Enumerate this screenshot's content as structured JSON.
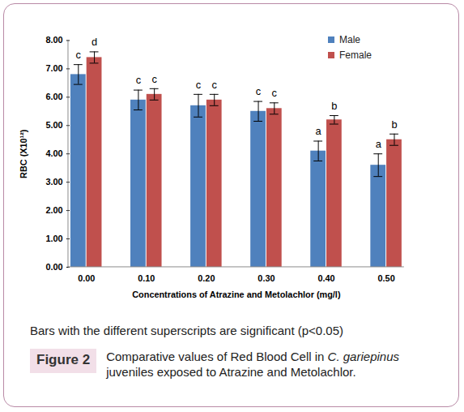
{
  "chart_data": {
    "type": "bar",
    "categories": [
      "0.00",
      "0.10",
      "0.20",
      "0.30",
      "0.40",
      "0.50"
    ],
    "series": [
      {
        "name": "Male",
        "color": "#4f81bd",
        "values": [
          6.8,
          5.9,
          5.7,
          5.5,
          4.1,
          3.6
        ],
        "errors": [
          0.35,
          0.35,
          0.4,
          0.35,
          0.35,
          0.4
        ],
        "superscripts": [
          "c",
          "c",
          "c",
          "c",
          "a",
          "a"
        ]
      },
      {
        "name": "Female",
        "color": "#c0504d",
        "values": [
          7.4,
          6.1,
          5.9,
          5.6,
          5.2,
          4.5
        ],
        "errors": [
          0.2,
          0.2,
          0.2,
          0.2,
          0.15,
          0.2
        ],
        "superscripts": [
          "d",
          "c",
          "c",
          "c",
          "b",
          "b"
        ]
      }
    ],
    "xlabel": "Concentrations of Atrazine and Metolachlor (mg/l)",
    "ylabel": "RBC (X10¹²)",
    "ylim": [
      0,
      8
    ],
    "yticks": [
      {
        "value": 0,
        "label": "0.00"
      },
      {
        "value": 1,
        "label": "1.00"
      },
      {
        "value": 2,
        "label": "2.00"
      },
      {
        "value": 3,
        "label": "3.00"
      },
      {
        "value": 4,
        "label": "4.00"
      },
      {
        "value": 5,
        "label": "5.00"
      },
      {
        "value": 6,
        "label": "6.00"
      },
      {
        "value": 7,
        "label": "7.00"
      },
      {
        "value": 8,
        "label": "8.00"
      }
    ],
    "grid": false,
    "legend": "upper right",
    "note": "Bars with the different superscripts are significant (p<0.05)",
    "figure_label": "Figure 2",
    "caption": [
      {
        "text": "Comparative values of Red Blood Cell in "
      },
      {
        "text": "C. gariepinus",
        "italic": true
      },
      {
        "text": " juveniles exposed to Atrazine and Metolachlor."
      }
    ]
  }
}
